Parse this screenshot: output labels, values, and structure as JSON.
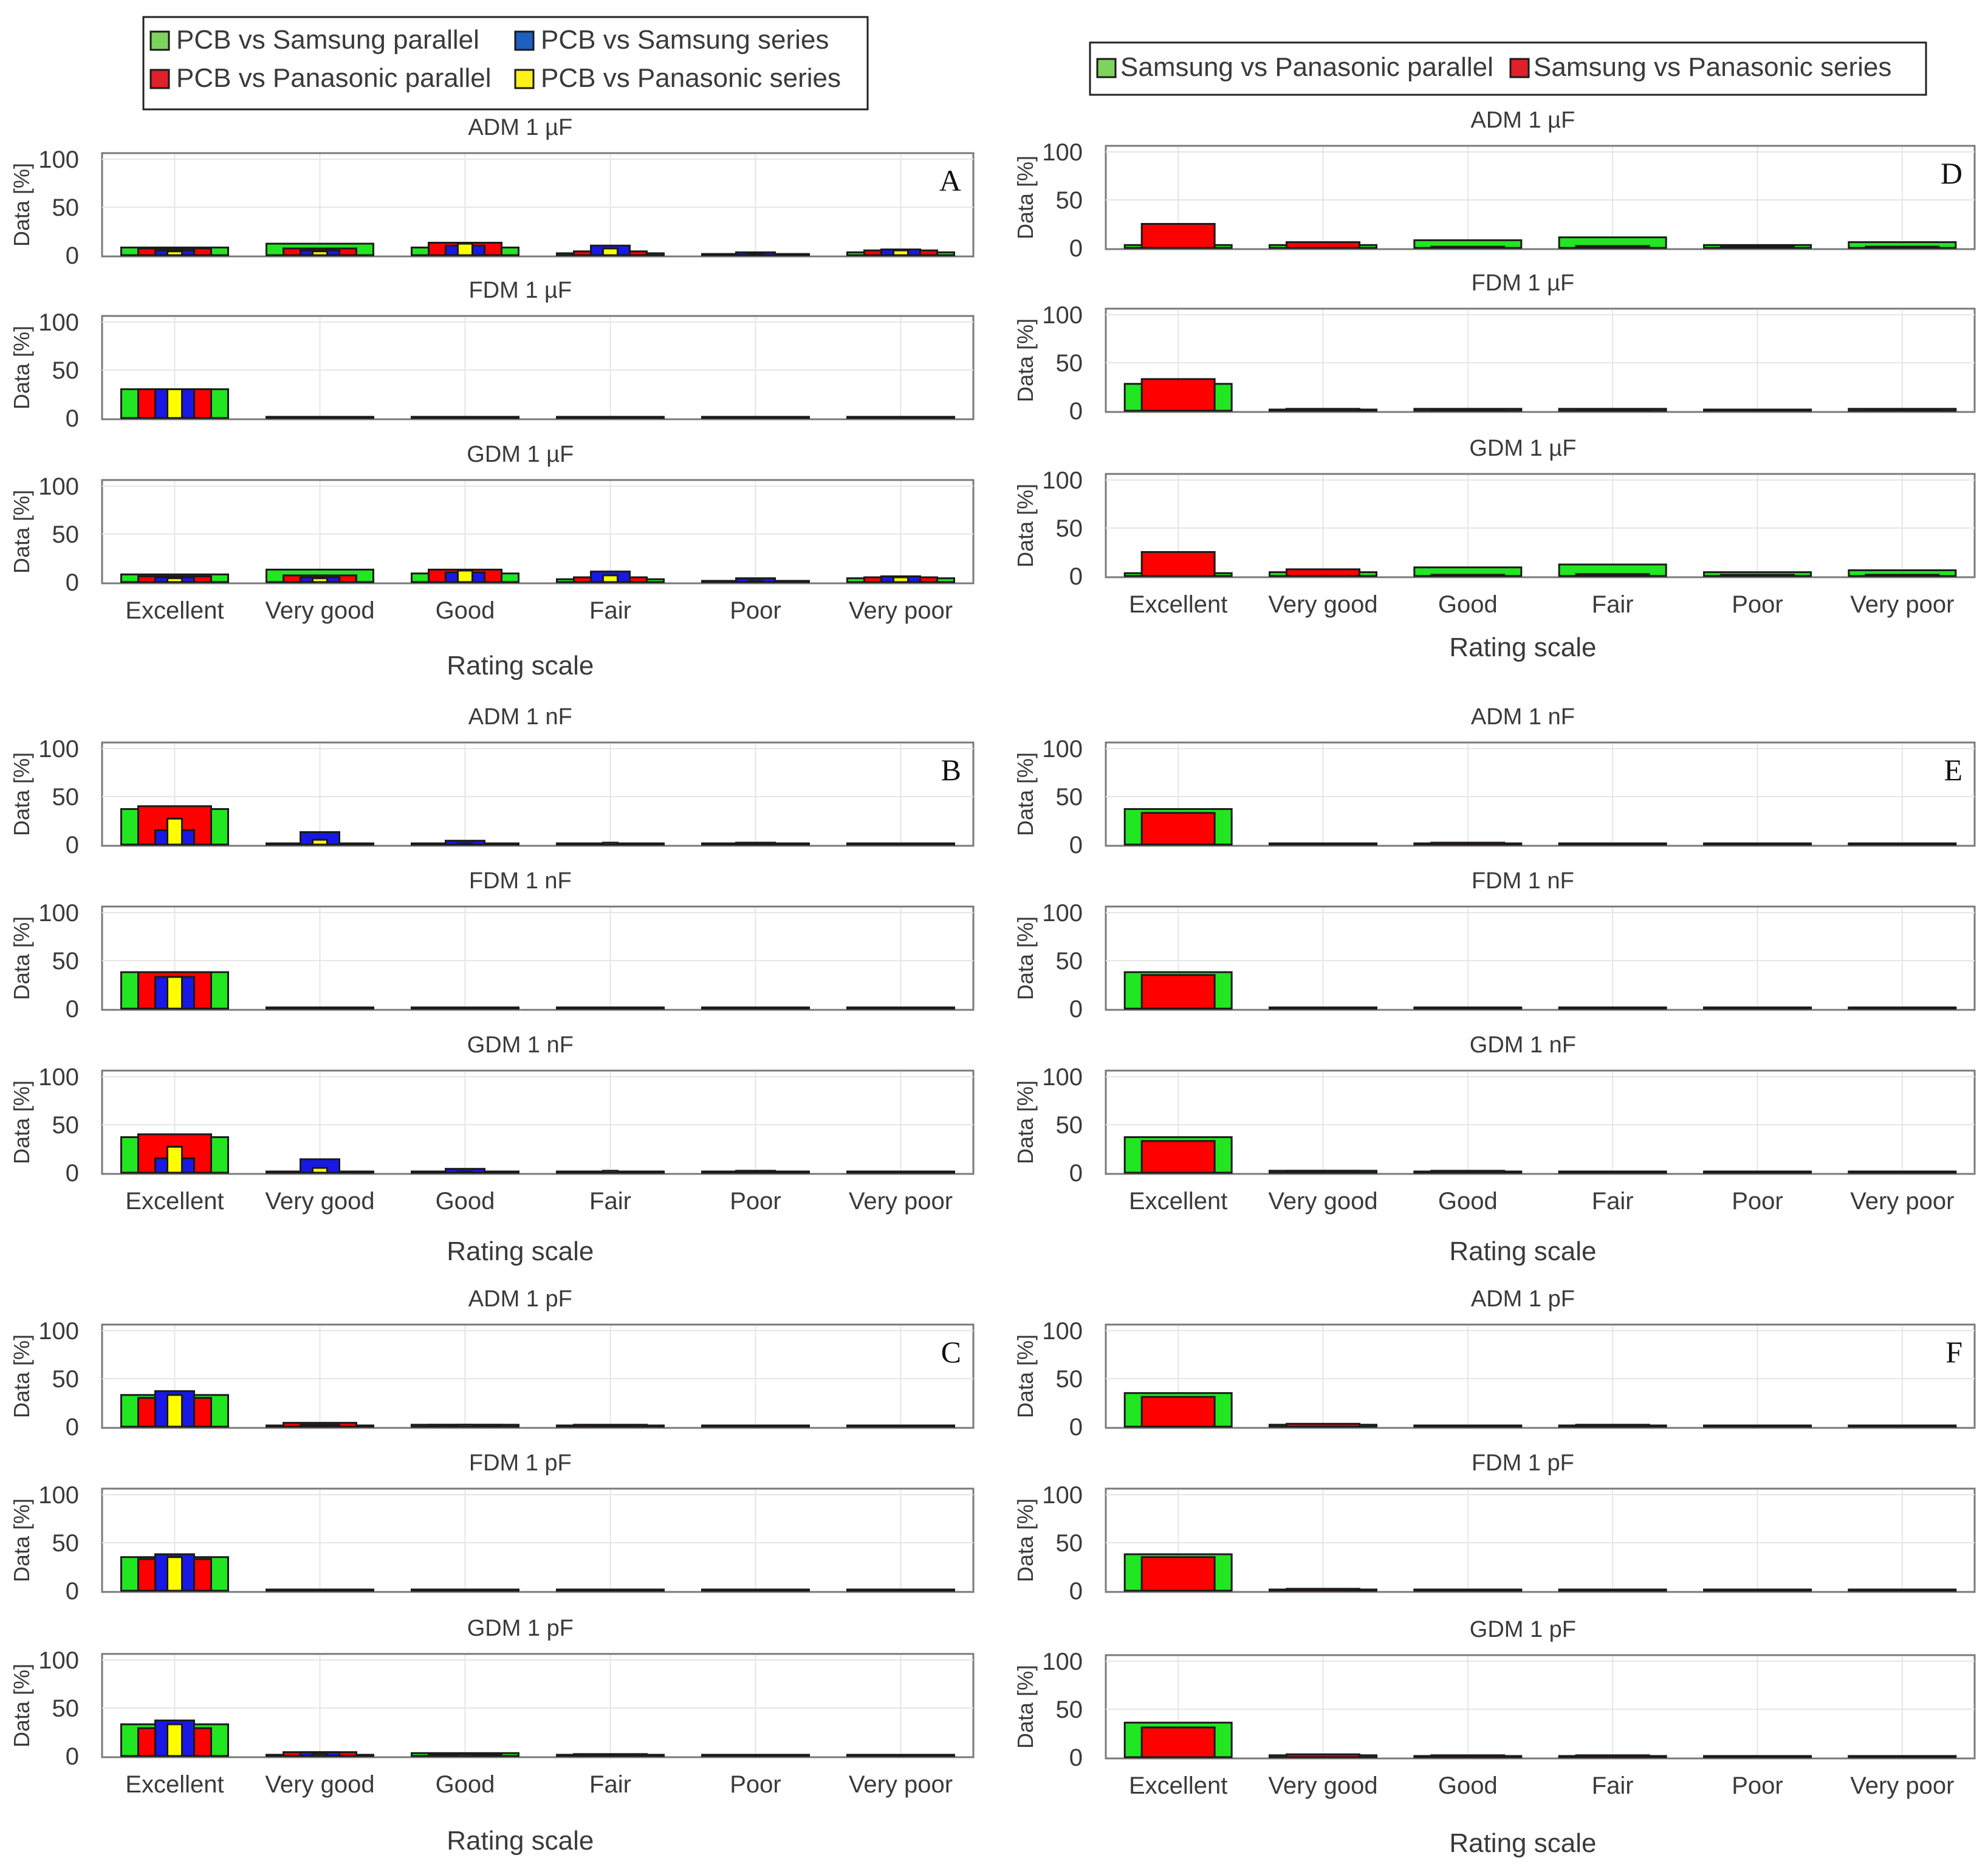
{
  "legends": {
    "left": [
      {
        "label": "PCB vs Samsung parallel",
        "color": "#7dd35c"
      },
      {
        "label": "PCB vs Samsung series",
        "color": "#1f5fbf"
      },
      {
        "label": "PCB vs Panasonic parallel",
        "color": "#e0202a"
      },
      {
        "label": "PCB vs Panasonic series",
        "color": "#ffef1a"
      }
    ],
    "right": [
      {
        "label": "Samsung vs Panasonic parallel",
        "color": "#7dd35c"
      },
      {
        "label": "Samsung vs Panasonic series",
        "color": "#e0202a"
      }
    ]
  },
  "colors": {
    "bar_green": "#22e622",
    "bar_red": "#ff0000",
    "bar_blue": "#1818e8",
    "bar_yellow": "#ffff00"
  },
  "chart_data": [
    {
      "group": "A",
      "type": "bar",
      "title": "ADM 1 µF",
      "ylabel": "Data [%]",
      "ylim": [
        0,
        100
      ],
      "yticks": [
        0,
        50,
        100
      ],
      "categories": [
        "Excellent",
        "Very good",
        "Good",
        "Fair",
        "Poor",
        "Very poor"
      ],
      "series": [
        {
          "name": "PCB vs Samsung parallel",
          "values": [
            8,
            12,
            8,
            2,
            1,
            3
          ]
        },
        {
          "name": "PCB vs Panasonic parallel",
          "values": [
            7,
            7,
            13,
            4,
            1,
            5
          ]
        },
        {
          "name": "PCB vs Samsung series",
          "values": [
            5,
            5,
            10,
            10,
            3,
            6
          ]
        },
        {
          "name": "PCB vs Panasonic series",
          "values": [
            4,
            4,
            12,
            7,
            1,
            5
          ]
        }
      ]
    },
    {
      "group": "A",
      "type": "bar",
      "title": "FDM 1 µF",
      "ylabel": "Data [%]",
      "ylim": [
        0,
        100
      ],
      "yticks": [
        0,
        50,
        100
      ],
      "categories": [
        "Excellent",
        "Very good",
        "Good",
        "Fair",
        "Poor",
        "Very poor"
      ],
      "series": [
        {
          "name": "PCB vs Samsung parallel",
          "values": [
            30,
            1,
            1,
            1,
            1,
            1
          ]
        },
        {
          "name": "PCB vs Panasonic parallel",
          "values": [
            30,
            1,
            1,
            1,
            1,
            1
          ]
        },
        {
          "name": "PCB vs Samsung series",
          "values": [
            30,
            1,
            1,
            1,
            1,
            1
          ]
        },
        {
          "name": "PCB vs Panasonic series",
          "values": [
            30,
            1,
            1,
            1,
            1,
            1
          ]
        }
      ]
    },
    {
      "group": "A",
      "type": "bar",
      "title": "GDM 1 µF",
      "ylabel": "Data [%]",
      "ylim": [
        0,
        100
      ],
      "yticks": [
        0,
        50,
        100
      ],
      "categories": [
        "Excellent",
        "Very good",
        "Good",
        "Fair",
        "Poor",
        "Very poor"
      ],
      "series": [
        {
          "name": "PCB vs Samsung parallel",
          "values": [
            8,
            13,
            9,
            3,
            1,
            4
          ]
        },
        {
          "name": "PCB vs Panasonic parallel",
          "values": [
            6,
            7,
            13,
            5,
            1,
            5
          ]
        },
        {
          "name": "PCB vs Samsung series",
          "values": [
            5,
            5,
            10,
            11,
            4,
            6
          ]
        },
        {
          "name": "PCB vs Panasonic series",
          "values": [
            4,
            4,
            12,
            7,
            1,
            5
          ]
        }
      ]
    },
    {
      "group": "B",
      "type": "bar",
      "title": "ADM 1 nF",
      "ylabel": "Data [%]",
      "ylim": [
        0,
        100
      ],
      "yticks": [
        0,
        50,
        100
      ],
      "categories": [
        "Excellent",
        "Very good",
        "Good",
        "Fair",
        "Poor",
        "Very poor"
      ],
      "series": [
        {
          "name": "PCB vs Samsung parallel",
          "values": [
            37,
            1,
            1,
            1,
            1,
            1
          ]
        },
        {
          "name": "PCB vs Panasonic parallel",
          "values": [
            40,
            1,
            1,
            1,
            1,
            1
          ]
        },
        {
          "name": "PCB vs Samsung series",
          "values": [
            15,
            13,
            4,
            1,
            2,
            1
          ]
        },
        {
          "name": "PCB vs Panasonic series",
          "values": [
            27,
            5,
            1,
            2,
            1,
            1
          ]
        }
      ]
    },
    {
      "group": "B",
      "type": "bar",
      "title": "FDM 1 nF",
      "ylabel": "Data [%]",
      "ylim": [
        0,
        100
      ],
      "yticks": [
        0,
        50,
        100
      ],
      "categories": [
        "Excellent",
        "Very good",
        "Good",
        "Fair",
        "Poor",
        "Very poor"
      ],
      "series": [
        {
          "name": "PCB vs Samsung parallel",
          "values": [
            38,
            1,
            1,
            1,
            0,
            0
          ]
        },
        {
          "name": "PCB vs Panasonic parallel",
          "values": [
            38,
            1,
            1,
            1,
            0,
            0
          ]
        },
        {
          "name": "PCB vs Samsung series",
          "values": [
            33,
            1,
            1,
            1,
            0,
            0
          ]
        },
        {
          "name": "PCB vs Panasonic series",
          "values": [
            33,
            1,
            1,
            1,
            0,
            0
          ]
        }
      ]
    },
    {
      "group": "B",
      "type": "bar",
      "title": "GDM 1 nF",
      "ylabel": "Data [%]",
      "ylim": [
        0,
        100
      ],
      "yticks": [
        0,
        50,
        100
      ],
      "categories": [
        "Excellent",
        "Very good",
        "Good",
        "Fair",
        "Poor",
        "Very poor"
      ],
      "series": [
        {
          "name": "PCB vs Samsung parallel",
          "values": [
            37,
            1,
            1,
            1,
            1,
            1
          ]
        },
        {
          "name": "PCB vs Panasonic parallel",
          "values": [
            40,
            1,
            1,
            1,
            1,
            1
          ]
        },
        {
          "name": "PCB vs Samsung series",
          "values": [
            15,
            14,
            4,
            1,
            2,
            1
          ]
        },
        {
          "name": "PCB vs Panasonic series",
          "values": [
            27,
            5,
            1,
            2,
            1,
            1
          ]
        }
      ]
    },
    {
      "group": "C",
      "type": "bar",
      "title": "ADM 1 pF",
      "ylabel": "Data [%]",
      "ylim": [
        0,
        100
      ],
      "yticks": [
        0,
        50,
        100
      ],
      "categories": [
        "Excellent",
        "Very good",
        "Good",
        "Fair",
        "Poor",
        "Very poor"
      ],
      "series": [
        {
          "name": "PCB vs Samsung parallel",
          "values": [
            33,
            1,
            2,
            1,
            0,
            0
          ]
        },
        {
          "name": "PCB vs Panasonic parallel",
          "values": [
            30,
            4,
            2,
            2,
            0,
            0
          ]
        },
        {
          "name": "PCB vs Samsung series",
          "values": [
            37,
            2,
            1,
            1,
            0,
            0
          ]
        },
        {
          "name": "PCB vs Panasonic series",
          "values": [
            33,
            1,
            2,
            1,
            0,
            0
          ]
        }
      ]
    },
    {
      "group": "C",
      "type": "bar",
      "title": "FDM 1 pF",
      "ylabel": "Data [%]",
      "ylim": [
        0,
        100
      ],
      "yticks": [
        0,
        50,
        100
      ],
      "categories": [
        "Excellent",
        "Very good",
        "Good",
        "Fair",
        "Poor",
        "Very poor"
      ],
      "series": [
        {
          "name": "PCB vs Samsung parallel",
          "values": [
            35,
            1,
            1,
            0,
            0,
            0
          ]
        },
        {
          "name": "PCB vs Panasonic parallel",
          "values": [
            33,
            1,
            1,
            0,
            0,
            0
          ]
        },
        {
          "name": "PCB vs Samsung series",
          "values": [
            38,
            1,
            1,
            0,
            0,
            0
          ]
        },
        {
          "name": "PCB vs Panasonic series",
          "values": [
            35,
            1,
            1,
            0,
            0,
            0
          ]
        }
      ]
    },
    {
      "group": "C",
      "type": "bar",
      "title": "GDM 1 pF",
      "ylabel": "Data [%]",
      "ylim": [
        0,
        100
      ],
      "yticks": [
        0,
        50,
        100
      ],
      "categories": [
        "Excellent",
        "Very good",
        "Good",
        "Fair",
        "Poor",
        "Very poor"
      ],
      "series": [
        {
          "name": "PCB vs Samsung parallel",
          "values": [
            33,
            1,
            3,
            1,
            0,
            0
          ]
        },
        {
          "name": "PCB vs Panasonic parallel",
          "values": [
            29,
            4,
            2,
            2,
            0,
            0
          ]
        },
        {
          "name": "PCB vs Samsung series",
          "values": [
            37,
            4,
            1,
            1,
            0,
            0
          ]
        },
        {
          "name": "PCB vs Panasonic series",
          "values": [
            33,
            2,
            2,
            1,
            0,
            0
          ]
        }
      ]
    },
    {
      "group": "D",
      "type": "bar",
      "title": "ADM 1 µF",
      "ylabel": "Data [%]",
      "ylim": [
        0,
        100
      ],
      "yticks": [
        0,
        50,
        100
      ],
      "categories": [
        "Excellent",
        "Very good",
        "Good",
        "Fair",
        "Poor",
        "Very poor"
      ],
      "series": [
        {
          "name": "Samsung vs Panasonic parallel",
          "values": [
            3,
            3,
            8,
            11,
            3,
            6
          ]
        },
        {
          "name": "Samsung vs Panasonic series",
          "values": [
            25,
            6,
            1,
            2,
            1,
            0
          ]
        }
      ]
    },
    {
      "group": "D",
      "type": "bar",
      "title": "FDM 1 µF",
      "ylabel": "Data [%]",
      "ylim": [
        0,
        100
      ],
      "yticks": [
        0,
        50,
        100
      ],
      "categories": [
        "Excellent",
        "Very good",
        "Good",
        "Fair",
        "Poor",
        "Very poor"
      ],
      "series": [
        {
          "name": "Samsung vs Panasonic parallel",
          "values": [
            28,
            1,
            2,
            2,
            1,
            2
          ]
        },
        {
          "name": "Samsung vs Panasonic series",
          "values": [
            33,
            2,
            1,
            1,
            0,
            0
          ]
        }
      ]
    },
    {
      "group": "D",
      "type": "bar",
      "title": "GDM 1 µF",
      "ylabel": "Data [%]",
      "ylim": [
        0,
        100
      ],
      "yticks": [
        0,
        50,
        100
      ],
      "categories": [
        "Excellent",
        "Very good",
        "Good",
        "Fair",
        "Poor",
        "Very poor"
      ],
      "series": [
        {
          "name": "Samsung vs Panasonic parallel",
          "values": [
            3,
            4,
            9,
            12,
            4,
            6
          ]
        },
        {
          "name": "Samsung vs Panasonic series",
          "values": [
            25,
            7,
            1,
            2,
            1,
            0
          ]
        }
      ]
    },
    {
      "group": "E",
      "type": "bar",
      "title": "ADM 1 nF",
      "ylabel": "Data [%]",
      "ylim": [
        0,
        100
      ],
      "yticks": [
        0,
        50,
        100
      ],
      "categories": [
        "Excellent",
        "Very good",
        "Good",
        "Fair",
        "Poor",
        "Very poor"
      ],
      "series": [
        {
          "name": "Samsung vs Panasonic parallel",
          "values": [
            37,
            1,
            1,
            1,
            0,
            0
          ]
        },
        {
          "name": "Samsung vs Panasonic series",
          "values": [
            33,
            1,
            2,
            1,
            0,
            0
          ]
        }
      ]
    },
    {
      "group": "E",
      "type": "bar",
      "title": "FDM 1 nF",
      "ylabel": "Data [%]",
      "ylim": [
        0,
        100
      ],
      "yticks": [
        0,
        50,
        100
      ],
      "categories": [
        "Excellent",
        "Very good",
        "Good",
        "Fair",
        "Poor",
        "Very poor"
      ],
      "series": [
        {
          "name": "Samsung vs Panasonic parallel",
          "values": [
            38,
            1,
            1,
            1,
            0,
            0
          ]
        },
        {
          "name": "Samsung vs Panasonic series",
          "values": [
            35,
            1,
            1,
            1,
            0,
            0
          ]
        }
      ]
    },
    {
      "group": "E",
      "type": "bar",
      "title": "GDM 1 nF",
      "ylabel": "Data [%]",
      "ylim": [
        0,
        100
      ],
      "yticks": [
        0,
        50,
        100
      ],
      "categories": [
        "Excellent",
        "Very good",
        "Good",
        "Fair",
        "Poor",
        "Very poor"
      ],
      "series": [
        {
          "name": "Samsung vs Panasonic parallel",
          "values": [
            37,
            2,
            1,
            1,
            1,
            1
          ]
        },
        {
          "name": "Samsung vs Panasonic series",
          "values": [
            33,
            2,
            2,
            1,
            0,
            0
          ]
        }
      ]
    },
    {
      "group": "F",
      "type": "bar",
      "title": "ADM 1 pF",
      "ylabel": "Data [%]",
      "ylim": [
        0,
        100
      ],
      "yticks": [
        0,
        50,
        100
      ],
      "categories": [
        "Excellent",
        "Very good",
        "Good",
        "Fair",
        "Poor",
        "Very poor"
      ],
      "series": [
        {
          "name": "Samsung vs Panasonic parallel",
          "values": [
            35,
            2,
            1,
            1,
            0,
            0
          ]
        },
        {
          "name": "Samsung vs Panasonic series",
          "values": [
            31,
            3,
            1,
            2,
            0,
            0
          ]
        }
      ]
    },
    {
      "group": "F",
      "type": "bar",
      "title": "FDM 1 pF",
      "ylabel": "Data [%]",
      "ylim": [
        0,
        100
      ],
      "yticks": [
        0,
        50,
        100
      ],
      "categories": [
        "Excellent",
        "Very good",
        "Good",
        "Fair",
        "Poor",
        "Very poor"
      ],
      "series": [
        {
          "name": "Samsung vs Panasonic parallel",
          "values": [
            38,
            1,
            1,
            1,
            0,
            0
          ]
        },
        {
          "name": "Samsung vs Panasonic series",
          "values": [
            35,
            2,
            1,
            1,
            0,
            0
          ]
        }
      ]
    },
    {
      "group": "F",
      "type": "bar",
      "title": "GDM 1 pF",
      "ylabel": "Data [%]",
      "ylim": [
        0,
        100
      ],
      "yticks": [
        0,
        50,
        100
      ],
      "categories": [
        "Excellent",
        "Very good",
        "Good",
        "Fair",
        "Poor",
        "Very poor"
      ],
      "series": [
        {
          "name": "Samsung vs Panasonic parallel",
          "values": [
            36,
            2,
            1,
            1,
            1,
            0
          ]
        },
        {
          "name": "Samsung vs Panasonic series",
          "values": [
            31,
            3,
            2,
            2,
            0,
            0
          ]
        }
      ]
    }
  ],
  "groups": [
    {
      "letter": "A",
      "xlabel": "Rating scale"
    },
    {
      "letter": "B",
      "xlabel": "Rating scale"
    },
    {
      "letter": "C",
      "xlabel": "Rating scale"
    },
    {
      "letter": "D",
      "xlabel": "Rating scale"
    },
    {
      "letter": "E",
      "xlabel": "Rating scale"
    },
    {
      "letter": "F",
      "xlabel": "Rating scale"
    }
  ]
}
